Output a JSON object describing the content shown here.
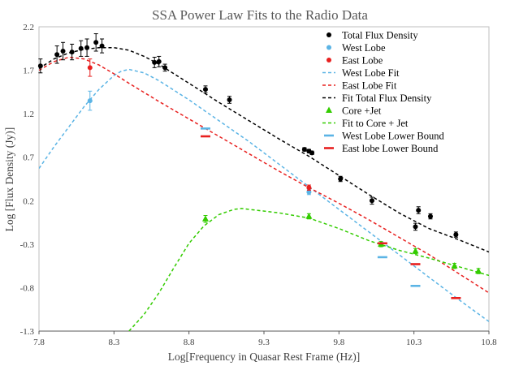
{
  "chart_data": {
    "type": "scatter",
    "title": "SSA Power Law Fits to the Radio Data",
    "xlabel": "Log[Frequency in Quasar Rest Frame (Hz)]",
    "ylabel": "Log [Flux Density (Jy)]",
    "xlim": [
      7.8,
      10.8
    ],
    "ylim": [
      -1.3,
      2.2
    ],
    "xticks": [
      7.8,
      8.3,
      8.8,
      9.3,
      9.8,
      10.3,
      10.8
    ],
    "xtick_labels": [
      "7.8",
      "8.3",
      "8.8",
      "9.3",
      "9.8",
      "10.3",
      "10.8"
    ],
    "yticks": [
      -1.3,
      -0.8,
      -0.3,
      0.2,
      0.7,
      1.2,
      1.7,
      2.2
    ],
    "ytick_labels": [
      "-1.3",
      "-0.8",
      "-0.3",
      "0.2",
      "0.7",
      "1.2",
      "1.7",
      "2.2"
    ],
    "grid": false,
    "legend_position": "top-right",
    "series": [
      {
        "name": "Total Flux Density",
        "kind": "points",
        "marker": "circle",
        "color": "#000000",
        "x": [
          7.81,
          7.92,
          7.96,
          8.02,
          8.08,
          8.12,
          8.18,
          8.22,
          8.57,
          8.6,
          8.64,
          8.91,
          9.07,
          9.57,
          9.6,
          9.62,
          9.81,
          10.02,
          10.31,
          10.33,
          10.41,
          10.58
        ],
        "y": [
          1.75,
          1.88,
          1.92,
          1.91,
          1.95,
          1.96,
          2.02,
          1.98,
          1.79,
          1.8,
          1.73,
          1.48,
          1.36,
          0.79,
          0.77,
          0.75,
          0.45,
          0.2,
          -0.1,
          0.09,
          0.02,
          -0.19
        ],
        "yerr": [
          0.08,
          0.1,
          0.1,
          0.09,
          0.09,
          0.1,
          0.1,
          0.08,
          0.06,
          0.06,
          0.04,
          0.04,
          0.04,
          0.02,
          0.02,
          0.02,
          0.03,
          0.04,
          0.04,
          0.04,
          0.03,
          0.03
        ]
      },
      {
        "name": "West Lobe",
        "kind": "points",
        "marker": "circle",
        "color": "#5bb4e5",
        "x": [
          8.14,
          9.6
        ],
        "y": [
          1.35,
          0.3
        ],
        "yerr": [
          0.11,
          0.03
        ]
      },
      {
        "name": "East Lobe",
        "kind": "points",
        "marker": "circle",
        "color": "#e8201f",
        "x": [
          8.14,
          9.6
        ],
        "y": [
          1.73,
          0.35
        ],
        "yerr": [
          0.1,
          0.03
        ]
      },
      {
        "name": "West Lobe Fit",
        "kind": "line",
        "dash": "dashed",
        "color": "#5bb4e5",
        "x": [
          7.8,
          7.9,
          8.0,
          8.1,
          8.2,
          8.3,
          8.35,
          8.4,
          8.5,
          8.6,
          8.7,
          8.8,
          8.9,
          9.0,
          9.2,
          9.4,
          9.6,
          9.8,
          10.0,
          10.2,
          10.4,
          10.6,
          10.8
        ],
        "y": [
          0.57,
          0.82,
          1.05,
          1.28,
          1.48,
          1.64,
          1.69,
          1.71,
          1.67,
          1.58,
          1.47,
          1.36,
          1.24,
          1.12,
          0.88,
          0.62,
          0.36,
          0.1,
          -0.16,
          -0.42,
          -0.68,
          -0.94,
          -1.19
        ]
      },
      {
        "name": "East Lobe Fit",
        "kind": "line",
        "dash": "dashed",
        "color": "#e8201f",
        "x": [
          7.8,
          7.9,
          8.0,
          8.1,
          8.2,
          8.3,
          8.4,
          8.6,
          8.8,
          9.0,
          9.2,
          9.4,
          9.6,
          9.8,
          10.0,
          10.2,
          10.4,
          10.6,
          10.8
        ],
        "y": [
          1.7,
          1.8,
          1.85,
          1.83,
          1.76,
          1.66,
          1.55,
          1.34,
          1.14,
          0.94,
          0.74,
          0.54,
          0.35,
          0.17,
          -0.02,
          -0.22,
          -0.42,
          -0.64,
          -0.86
        ]
      },
      {
        "name": "Fit Total Flux Density",
        "kind": "line",
        "dash": "dashed",
        "color": "#000000",
        "x": [
          7.8,
          7.9,
          8.0,
          8.1,
          8.2,
          8.3,
          8.4,
          8.5,
          8.6,
          8.7,
          8.8,
          9.0,
          9.2,
          9.4,
          9.6,
          9.8,
          10.0,
          10.2,
          10.4,
          10.6,
          10.8
        ],
        "y": [
          1.72,
          1.83,
          1.9,
          1.94,
          1.96,
          1.96,
          1.93,
          1.86,
          1.77,
          1.66,
          1.55,
          1.33,
          1.12,
          0.91,
          0.71,
          0.49,
          0.27,
          0.06,
          -0.12,
          -0.25,
          -0.39
        ]
      },
      {
        "name": "Core +Jet",
        "kind": "points",
        "marker": "triangle",
        "color": "#33cc00",
        "x": [
          8.91,
          9.6,
          10.08,
          10.31,
          10.57,
          10.73
        ],
        "y": [
          -0.01,
          0.02,
          -0.3,
          -0.38,
          -0.55,
          -0.61
        ],
        "yerr": [
          0.04,
          0.03,
          0.03,
          0.03,
          0.03,
          0.03
        ]
      },
      {
        "name": "Fit to Core + Jet",
        "kind": "line",
        "dash": "dashed",
        "color": "#33cc00",
        "x": [
          8.4,
          8.5,
          8.6,
          8.7,
          8.8,
          8.9,
          9.0,
          9.1,
          9.15,
          9.2,
          9.3,
          9.4,
          9.6,
          9.8,
          10.0,
          10.2,
          10.4,
          10.6,
          10.8
        ],
        "y": [
          -1.3,
          -1.11,
          -0.86,
          -0.57,
          -0.29,
          -0.09,
          0.04,
          0.1,
          0.11,
          0.1,
          0.08,
          0.06,
          0.0,
          -0.12,
          -0.26,
          -0.37,
          -0.46,
          -0.56,
          -0.66
        ]
      },
      {
        "name": "West Lobe Lower Bound",
        "kind": "bars",
        "marker": "dash",
        "color": "#5bb4e5",
        "x": [
          8.91,
          10.09,
          10.31
        ],
        "y": [
          1.03,
          -0.45,
          -0.78
        ]
      },
      {
        "name": "East lobe Lower Bound",
        "kind": "bars",
        "marker": "dash",
        "color": "#e8201f",
        "x": [
          8.91,
          10.09,
          10.31,
          10.58
        ],
        "y": [
          0.94,
          -0.29,
          -0.53,
          -0.92
        ]
      }
    ]
  }
}
